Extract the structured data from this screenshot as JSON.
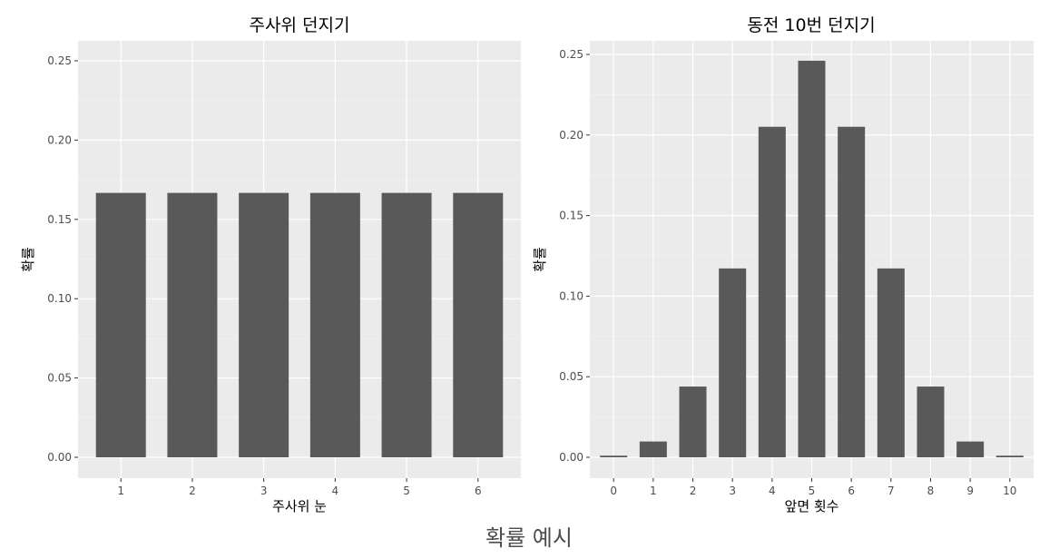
{
  "caption": "확률 예시",
  "chart_data": [
    {
      "type": "bar",
      "title": "주사위 던지기",
      "xlabel": "주사위 눈",
      "ylabel": "확률",
      "categories": [
        "1",
        "2",
        "3",
        "4",
        "5",
        "6"
      ],
      "values": [
        0.1667,
        0.1667,
        0.1667,
        0.1667,
        0.1667,
        0.1667
      ],
      "ylim": [
        0,
        0.25
      ],
      "yticks": [
        "0.00",
        "0.05",
        "0.10",
        "0.15",
        "0.20",
        "0.25"
      ],
      "grid": true,
      "bar_color": "#595959",
      "panel_color": "#ebebeb"
    },
    {
      "type": "bar",
      "title": "동전 10번 던지기",
      "xlabel": "앞면 횟수",
      "ylabel": "확률",
      "categories": [
        "0",
        "1",
        "2",
        "3",
        "4",
        "5",
        "6",
        "7",
        "8",
        "9",
        "10"
      ],
      "values": [
        0.001,
        0.0098,
        0.0439,
        0.1172,
        0.2051,
        0.2461,
        0.2051,
        0.1172,
        0.0439,
        0.0098,
        0.001
      ],
      "ylim": [
        0,
        0.25
      ],
      "yticks": [
        "0.00",
        "0.05",
        "0.10",
        "0.15",
        "0.20",
        "0.25"
      ],
      "grid": true,
      "bar_color": "#595959",
      "panel_color": "#ebebeb"
    }
  ]
}
